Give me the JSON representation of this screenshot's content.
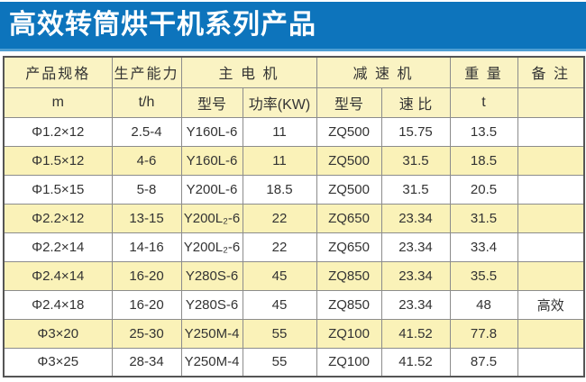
{
  "title": "高效转筒烘干机系列产品",
  "colors": {
    "title_bar": "#0d74bc",
    "title_bar_edge": "#4e9ed3",
    "title_text": "#ffffff",
    "header_yellow": "#faf3c3",
    "row_alt_yellow": "#faf2b8",
    "grid_line": "#8c8c8c",
    "outer_border": "#555555",
    "text": "#333333"
  },
  "table": {
    "header_top": {
      "product_spec": "产品规格",
      "capacity": "生产能力",
      "main_motor": "主 电 机",
      "reducer": "减 速 机",
      "weight": "重 量",
      "remark": "备 注"
    },
    "header_units": [
      "m",
      "t/h",
      "型号",
      "功率(KW)",
      "型号",
      "速 比",
      "t",
      ""
    ],
    "rows": [
      [
        "Φ1.2×12",
        "2.5-4",
        "Y160L-6",
        "11",
        "ZQ500",
        "15.75",
        "13.5",
        ""
      ],
      [
        "Φ1.5×12",
        "4-6",
        "Y160L-6",
        "11",
        "ZQ500",
        "31.5",
        "18.5",
        ""
      ],
      [
        "Φ1.5×15",
        "5-8",
        "Y200L-6",
        "18.5",
        "ZQ500",
        "31.5",
        "20.5",
        ""
      ],
      [
        "Φ2.2×12",
        "13-15",
        "Y200L₂-6",
        "22",
        "ZQ650",
        "23.34",
        "31.5",
        ""
      ],
      [
        "Φ2.2×14",
        "14-16",
        "Y200L₂-6",
        "22",
        "ZQ650",
        "23.34",
        "33.4",
        ""
      ],
      [
        "Φ2.4×14",
        "16-20",
        "Y280S-6",
        "45",
        "ZQ850",
        "23.34",
        "35.5",
        ""
      ],
      [
        "Φ2.4×18",
        "16-20",
        "Y280S-6",
        "45",
        "ZQ850",
        "23.34",
        "48",
        "高效"
      ],
      [
        "Φ3×20",
        "25-30",
        "Y250M-4",
        "55",
        "ZQ100",
        "41.52",
        "77.8",
        ""
      ],
      [
        "Φ3×25",
        "28-34",
        "Y250M-4",
        "55",
        "ZQ100",
        "41.52",
        "87.5",
        ""
      ]
    ]
  }
}
